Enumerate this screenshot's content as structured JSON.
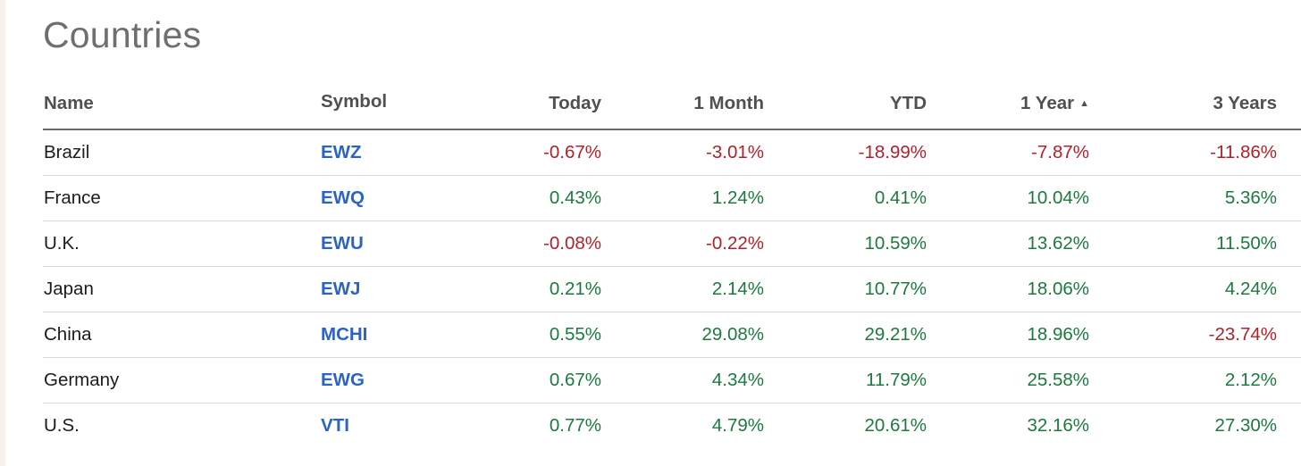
{
  "title": "Countries",
  "columns": {
    "name": "Name",
    "symbol": "Symbol",
    "today": "Today",
    "month1": "1 Month",
    "ytd": "YTD",
    "year1": "1 Year",
    "year3": "3 Years"
  },
  "sort": {
    "column": "1 Year",
    "direction": "ascending",
    "indicator": "▲"
  },
  "colors": {
    "negative": "#b3202b",
    "positive": "#1c7a3e",
    "symbol_link": "#2a63c9",
    "title": "#6f6f6f"
  },
  "rows": [
    {
      "name": "Brazil",
      "symbol": "EWZ",
      "today": "-0.67%",
      "month1": "-3.01%",
      "ytd": "-18.99%",
      "year1": "-7.87%",
      "year3": "-11.86%"
    },
    {
      "name": "France",
      "symbol": "EWQ",
      "today": "0.43%",
      "month1": "1.24%",
      "ytd": "0.41%",
      "year1": "10.04%",
      "year3": "5.36%"
    },
    {
      "name": "U.K.",
      "symbol": "EWU",
      "today": "-0.08%",
      "month1": "-0.22%",
      "ytd": "10.59%",
      "year1": "13.62%",
      "year3": "11.50%"
    },
    {
      "name": "Japan",
      "symbol": "EWJ",
      "today": "0.21%",
      "month1": "2.14%",
      "ytd": "10.77%",
      "year1": "18.06%",
      "year3": "4.24%"
    },
    {
      "name": "China",
      "symbol": "MCHI",
      "today": "0.55%",
      "month1": "29.08%",
      "ytd": "29.21%",
      "year1": "18.96%",
      "year3": "-23.74%"
    },
    {
      "name": "Germany",
      "symbol": "EWG",
      "today": "0.67%",
      "month1": "4.34%",
      "ytd": "11.79%",
      "year1": "25.58%",
      "year3": "2.12%"
    },
    {
      "name": "U.S.",
      "symbol": "VTI",
      "today": "0.77%",
      "month1": "4.79%",
      "ytd": "20.61%",
      "year1": "32.16%",
      "year3": "27.30%"
    }
  ]
}
